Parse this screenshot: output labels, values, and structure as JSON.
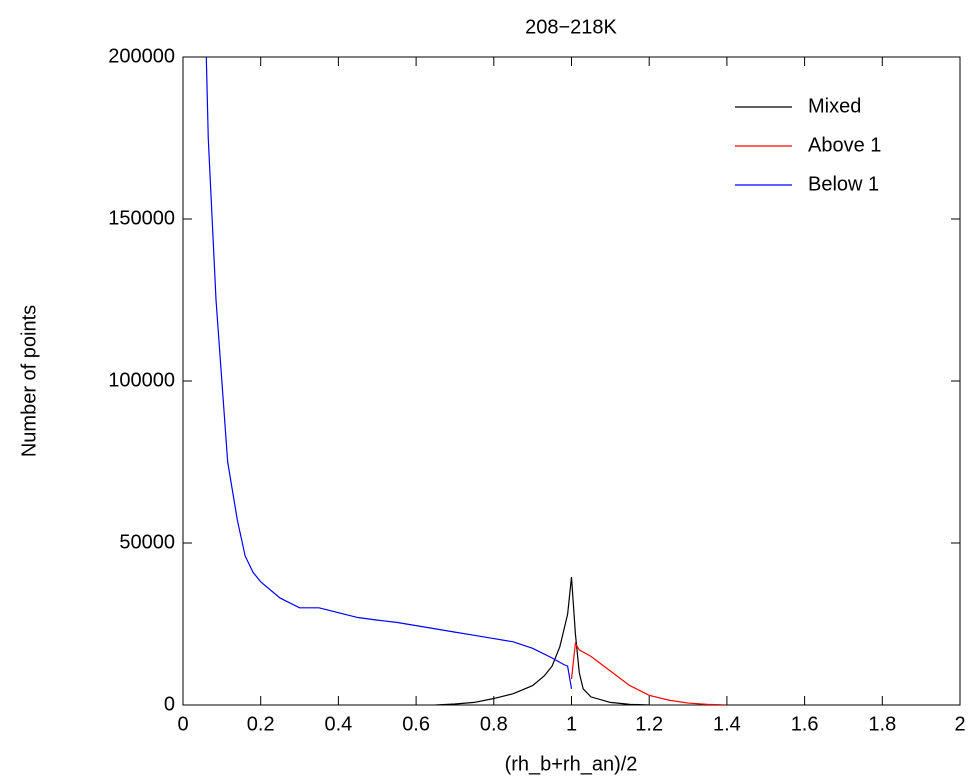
{
  "chart_data": {
    "type": "line",
    "title": "208−218K",
    "x_label": "(rh_b+rh_an)/2",
    "y_label": "Number of points",
    "xlim": [
      0,
      2
    ],
    "ylim": [
      0,
      200000
    ],
    "xticks": [
      0,
      0.2,
      0.4,
      0.6,
      0.8,
      1,
      1.2,
      1.4,
      1.6,
      1.8,
      2
    ],
    "yticks": [
      0,
      50000,
      100000,
      150000,
      200000
    ],
    "legend": "top-right",
    "series": [
      {
        "name": "Mixed",
        "color": "#000000",
        "x": [
          0.65,
          0.7,
          0.75,
          0.8,
          0.85,
          0.9,
          0.93,
          0.95,
          0.97,
          0.99,
          1.0,
          1.01,
          1.02,
          1.03,
          1.05,
          1.1,
          1.15,
          1.2
        ],
        "values": [
          0,
          300,
          800,
          2000,
          3500,
          6000,
          9000,
          12000,
          18000,
          28000,
          39500,
          22000,
          10000,
          5000,
          2500,
          800,
          200,
          0
        ]
      },
      {
        "name": "Above 1",
        "color": "#ff0000",
        "x": [
          1.0,
          1.01,
          1.02,
          1.05,
          1.1,
          1.15,
          1.2,
          1.25,
          1.3,
          1.35,
          1.4
        ],
        "values": [
          8000,
          19000,
          17000,
          15000,
          10500,
          6000,
          3000,
          1500,
          600,
          200,
          0
        ]
      },
      {
        "name": "Below 1",
        "color": "#0000ff",
        "x": [
          0.06,
          0.065,
          0.075,
          0.085,
          0.1,
          0.115,
          0.14,
          0.16,
          0.18,
          0.2,
          0.25,
          0.3,
          0.35,
          0.4,
          0.45,
          0.5,
          0.55,
          0.6,
          0.65,
          0.7,
          0.75,
          0.8,
          0.85,
          0.9,
          0.95,
          0.98,
          0.99,
          1.0
        ],
        "values": [
          200000,
          175000,
          150000,
          125000,
          100000,
          75000,
          57000,
          46000,
          41000,
          38000,
          33000,
          30000,
          30000,
          28500,
          27000,
          26200,
          25500,
          24500,
          23500,
          22500,
          21500,
          20500,
          19500,
          17500,
          14500,
          12500,
          12000,
          5000
        ]
      }
    ]
  }
}
